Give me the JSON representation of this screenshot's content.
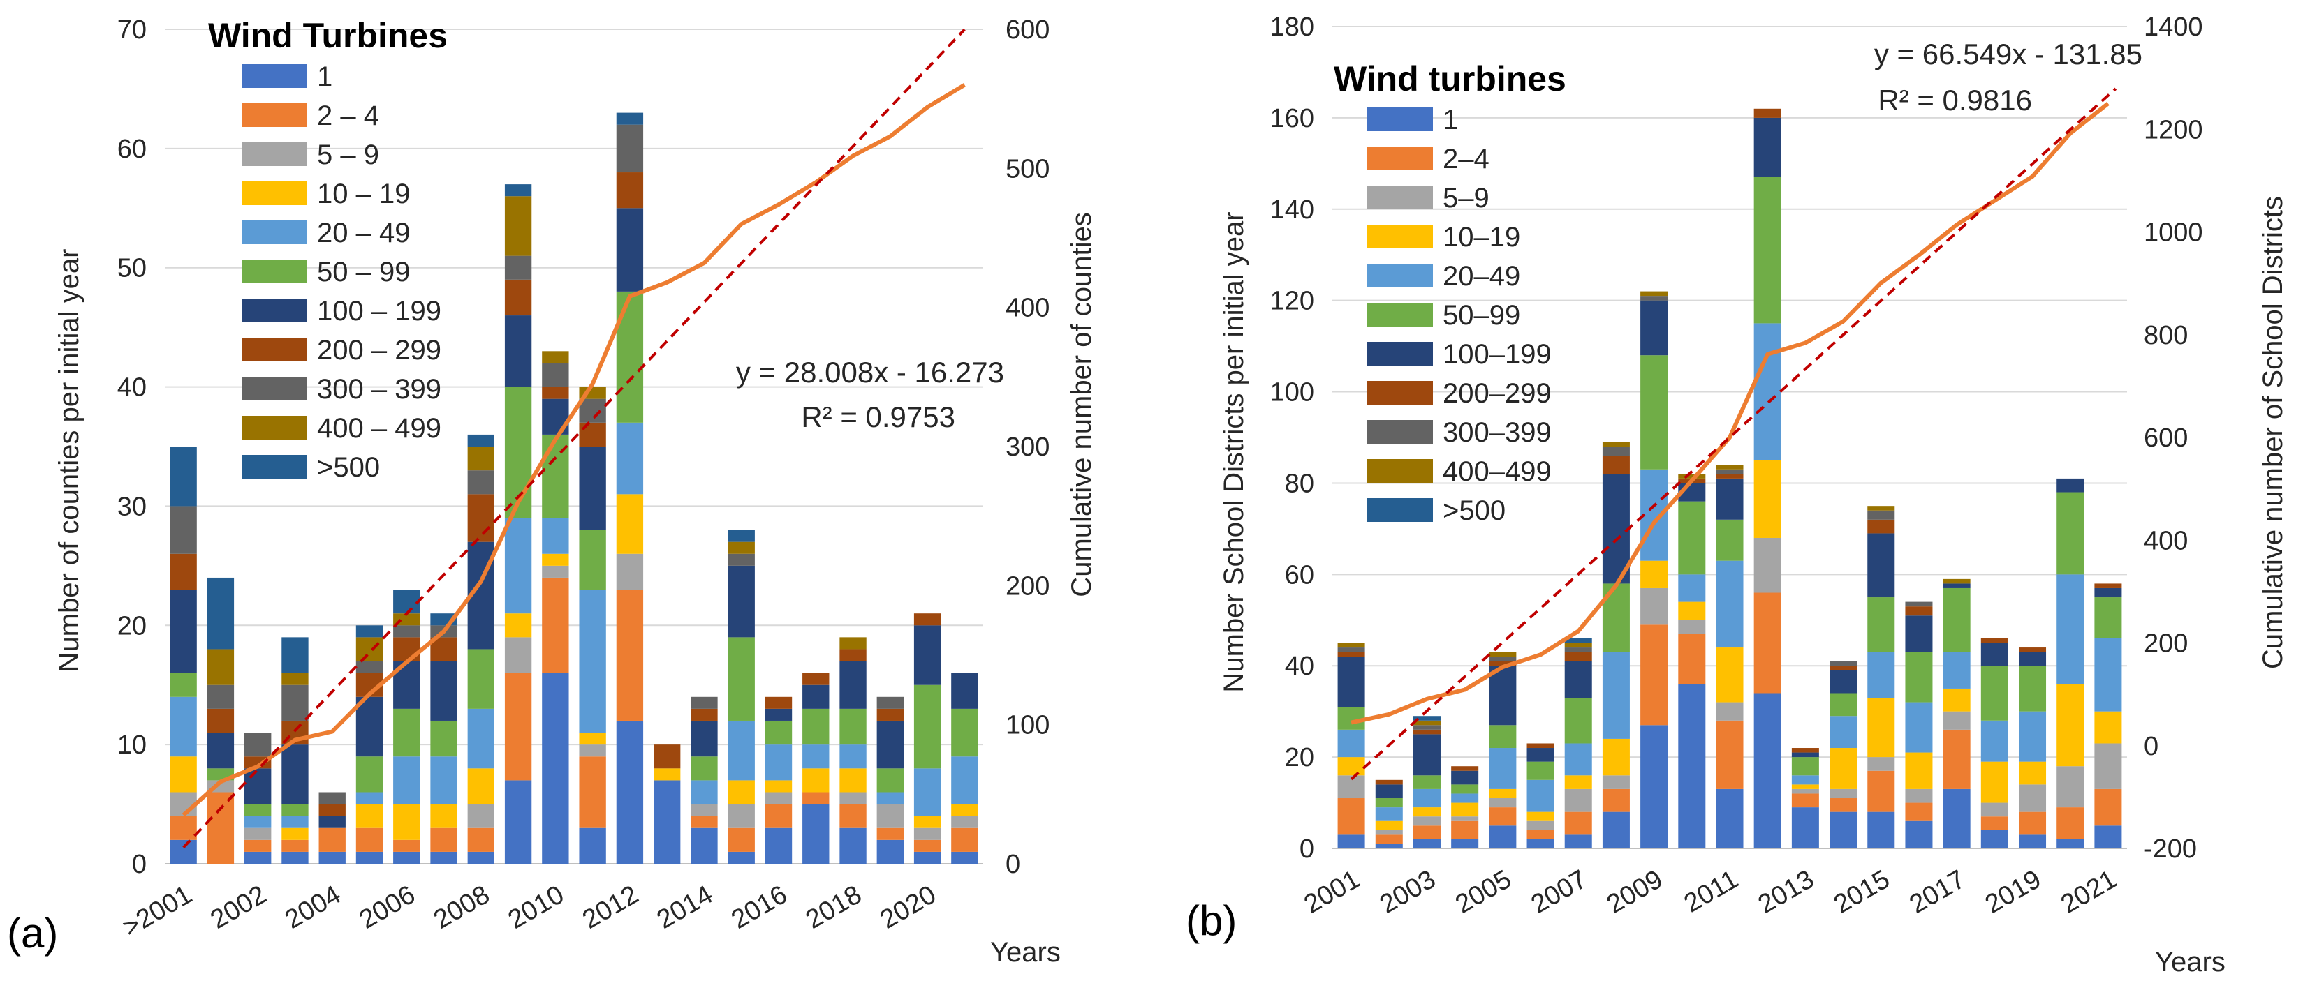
{
  "colors": {
    "bins": [
      "#4472c4",
      "#ed7d31",
      "#a5a5a5",
      "#ffc000",
      "#5b9bd5",
      "#70ad47",
      "#264478",
      "#9e480e",
      "#636363",
      "#997300",
      "#255e91"
    ],
    "cumulative_line": "#ed7d31",
    "trendline": "#c00000",
    "gridline": "#d9d9d9"
  },
  "chart_data": [
    {
      "type": "bar",
      "stacked": true,
      "panel_label": "(a)",
      "legend_title": "Wind Turbines",
      "bins": [
        "1",
        "2 – 4",
        "5 – 9",
        "10 – 19",
        "20 – 49",
        "50 – 99",
        "100 – 199",
        "200 – 299",
        "300 – 399",
        "400 – 499",
        ">500"
      ],
      "categories": [
        ">2001",
        "2001",
        "2002",
        "2003",
        "2004",
        "2005",
        "2006",
        "2007",
        "2008",
        "2009",
        "2010",
        "2011",
        "2012",
        "2013",
        "2014",
        "2015",
        "2016",
        "2017",
        "2018",
        "2019",
        "2020",
        "2021"
      ],
      "x_tick_labels": [
        ">2001",
        "2002",
        "2004",
        "2006",
        "2008",
        "2010",
        "2012",
        "2014",
        "2016",
        "2018",
        "2020"
      ],
      "xlabel": "Years",
      "ylabel": "Number of counties per initial year",
      "y2label": "Cumulative number of counties",
      "ylim": [
        0,
        70
      ],
      "yticks": [
        0,
        10,
        20,
        30,
        40,
        50,
        60,
        70
      ],
      "y2lim": [
        0,
        600
      ],
      "y2ticks": [
        0,
        100,
        200,
        300,
        400,
        500,
        600
      ],
      "series": [
        {
          "name": "1",
          "values": [
            2,
            0,
            1,
            1,
            1,
            1,
            1,
            1,
            1,
            7,
            16,
            3,
            12,
            7,
            3,
            1,
            3,
            5,
            3,
            2,
            1,
            1
          ]
        },
        {
          "name": "2 – 4",
          "values": [
            2,
            6,
            1,
            1,
            2,
            2,
            1,
            2,
            2,
            9,
            8,
            6,
            11,
            0,
            1,
            2,
            2,
            1,
            2,
            1,
            1,
            2
          ]
        },
        {
          "name": "5 – 9",
          "values": [
            2,
            1,
            1,
            0,
            0,
            0,
            0,
            0,
            2,
            3,
            1,
            1,
            3,
            0,
            1,
            2,
            1,
            0,
            1,
            2,
            1,
            1
          ]
        },
        {
          "name": "10 – 19",
          "values": [
            3,
            0,
            0,
            1,
            0,
            2,
            3,
            2,
            3,
            2,
            1,
            1,
            5,
            1,
            0,
            2,
            1,
            2,
            2,
            0,
            1,
            1
          ]
        },
        {
          "name": "20 – 49",
          "values": [
            5,
            0,
            1,
            1,
            0,
            1,
            4,
            4,
            5,
            8,
            3,
            12,
            6,
            0,
            2,
            5,
            3,
            2,
            2,
            1,
            4,
            4
          ]
        },
        {
          "name": "50 – 99",
          "values": [
            2,
            1,
            1,
            1,
            0,
            3,
            4,
            3,
            5,
            11,
            7,
            5,
            11,
            0,
            2,
            7,
            2,
            3,
            3,
            2,
            7,
            4
          ]
        },
        {
          "name": "100 – 199",
          "values": [
            7,
            3,
            3,
            5,
            1,
            5,
            4,
            5,
            9,
            6,
            3,
            7,
            7,
            0,
            3,
            6,
            1,
            2,
            4,
            4,
            5,
            3
          ]
        },
        {
          "name": "200 – 299",
          "values": [
            3,
            2,
            1,
            2,
            1,
            2,
            2,
            2,
            4,
            3,
            1,
            2,
            3,
            2,
            1,
            0,
            1,
            1,
            1,
            1,
            1,
            0
          ]
        },
        {
          "name": "300 – 399",
          "values": [
            4,
            2,
            2,
            3,
            1,
            1,
            1,
            1,
            2,
            2,
            2,
            2,
            4,
            0,
            1,
            1,
            0,
            0,
            0,
            1,
            0,
            0
          ]
        },
        {
          "name": "400 – 499",
          "values": [
            0,
            3,
            0,
            1,
            0,
            2,
            1,
            0,
            2,
            5,
            1,
            1,
            0,
            0,
            0,
            1,
            0,
            0,
            1,
            0,
            0,
            0
          ]
        },
        {
          "name": ">500",
          "values": [
            5,
            6,
            0,
            3,
            0,
            1,
            2,
            1,
            1,
            1,
            0,
            0,
            1,
            0,
            0,
            1,
            0,
            0,
            0,
            0,
            0,
            0
          ]
        }
      ],
      "cumulative": [
        35,
        59,
        70,
        89,
        95,
        122,
        145,
        167,
        203,
        260,
        305,
        345,
        408,
        418,
        432,
        460,
        474,
        490,
        509,
        523,
        544,
        560
      ],
      "trendline": {
        "slope": 28.008,
        "intercept": -16.273,
        "x_range": [
          1,
          22.0
        ]
      },
      "equation": "y = 28.008x - 16.273",
      "r_squared": "R² = 0.9753"
    },
    {
      "type": "bar",
      "stacked": true,
      "panel_label": "(b)",
      "legend_title": "Wind turbines",
      "bins": [
        "1",
        "2–4",
        "5–9",
        "10–19",
        "20–49",
        "50–99",
        "100–199",
        "200–299",
        "300–399",
        "400–499",
        ">500"
      ],
      "categories": [
        "2001",
        "2002",
        "2003",
        "2004",
        "2005",
        "2006",
        "2007",
        "2008",
        "2009",
        "2010",
        "2011",
        "2012",
        "2013",
        "2014",
        "2015",
        "2016",
        "2017",
        "2018",
        "2019",
        "2020",
        "2021"
      ],
      "x_tick_labels": [
        "2001",
        "2003",
        "2005",
        "2007",
        "2009",
        "2011",
        "2013",
        "2015",
        "2017",
        "2019",
        "2021"
      ],
      "xlabel": "Years",
      "ylabel": "Number School Districts per initial year",
      "y2label": "Cumulative number of School Districts",
      "ylim": [
        0,
        180
      ],
      "yticks": [
        0,
        20,
        40,
        60,
        80,
        100,
        120,
        140,
        160,
        180
      ],
      "y2lim": [
        -200,
        1400
      ],
      "y2ticks": [
        -200,
        0,
        200,
        400,
        600,
        800,
        1000,
        1200,
        1400
      ],
      "series": [
        {
          "name": "1",
          "values": [
            3,
            1,
            2,
            2,
            5,
            2,
            3,
            8,
            27,
            36,
            13,
            34,
            9,
            8,
            8,
            6,
            13,
            4,
            3,
            2,
            5
          ]
        },
        {
          "name": "2–4",
          "values": [
            8,
            2,
            3,
            4,
            4,
            2,
            5,
            5,
            22,
            11,
            15,
            22,
            3,
            3,
            9,
            4,
            13,
            3,
            5,
            7,
            8
          ]
        },
        {
          "name": "5–9",
          "values": [
            5,
            1,
            2,
            1,
            2,
            2,
            5,
            3,
            8,
            3,
            4,
            12,
            1,
            2,
            3,
            3,
            4,
            3,
            6,
            9,
            10
          ]
        },
        {
          "name": "10–19",
          "values": [
            4,
            2,
            2,
            3,
            2,
            2,
            3,
            8,
            6,
            4,
            12,
            17,
            1,
            9,
            13,
            8,
            5,
            9,
            5,
            18,
            7
          ]
        },
        {
          "name": "20–49",
          "values": [
            6,
            3,
            4,
            2,
            9,
            7,
            7,
            19,
            20,
            6,
            19,
            30,
            2,
            7,
            10,
            11,
            8,
            9,
            11,
            24,
            16
          ]
        },
        {
          "name": "50–99",
          "values": [
            5,
            2,
            3,
            2,
            5,
            4,
            10,
            15,
            25,
            16,
            9,
            32,
            4,
            5,
            12,
            11,
            14,
            12,
            10,
            18,
            9
          ]
        },
        {
          "name": "100–199",
          "values": [
            11,
            3,
            9,
            3,
            13,
            3,
            8,
            24,
            12,
            4,
            9,
            13,
            1,
            5,
            14,
            8,
            1,
            5,
            3,
            3,
            2
          ]
        },
        {
          "name": "200–299",
          "values": [
            1,
            1,
            1,
            1,
            1,
            1,
            2,
            4,
            0,
            1,
            1,
            2,
            1,
            1,
            3,
            2,
            0,
            1,
            1,
            0,
            1
          ]
        },
        {
          "name": "300–399",
          "values": [
            1,
            0,
            1,
            0,
            1,
            0,
            1,
            2,
            1,
            0,
            1,
            0,
            0,
            1,
            2,
            1,
            0,
            0,
            0,
            0,
            0
          ]
        },
        {
          "name": "400–499",
          "values": [
            1,
            0,
            1,
            0,
            1,
            0,
            1,
            1,
            1,
            1,
            1,
            0,
            0,
            0,
            1,
            0,
            1,
            0,
            0,
            0,
            0
          ]
        },
        {
          "name": ">500",
          "values": [
            0,
            0,
            1,
            0,
            0,
            0,
            1,
            0,
            0,
            0,
            0,
            0,
            0,
            0,
            0,
            0,
            0,
            0,
            0,
            0,
            0
          ]
        }
      ],
      "cumulative": [
        45,
        61,
        91,
        109,
        153,
        177,
        223,
        312,
        434,
        516,
        600,
        762,
        784,
        826,
        901,
        955,
        1014,
        1061,
        1108,
        1192,
        1250
      ],
      "trendline": {
        "slope": 66.549,
        "intercept": -131.85,
        "x_range": [
          1,
          21.2
        ]
      },
      "equation": "y = 66.549x - 131.85",
      "r_squared": "R² = 0.9816"
    }
  ]
}
